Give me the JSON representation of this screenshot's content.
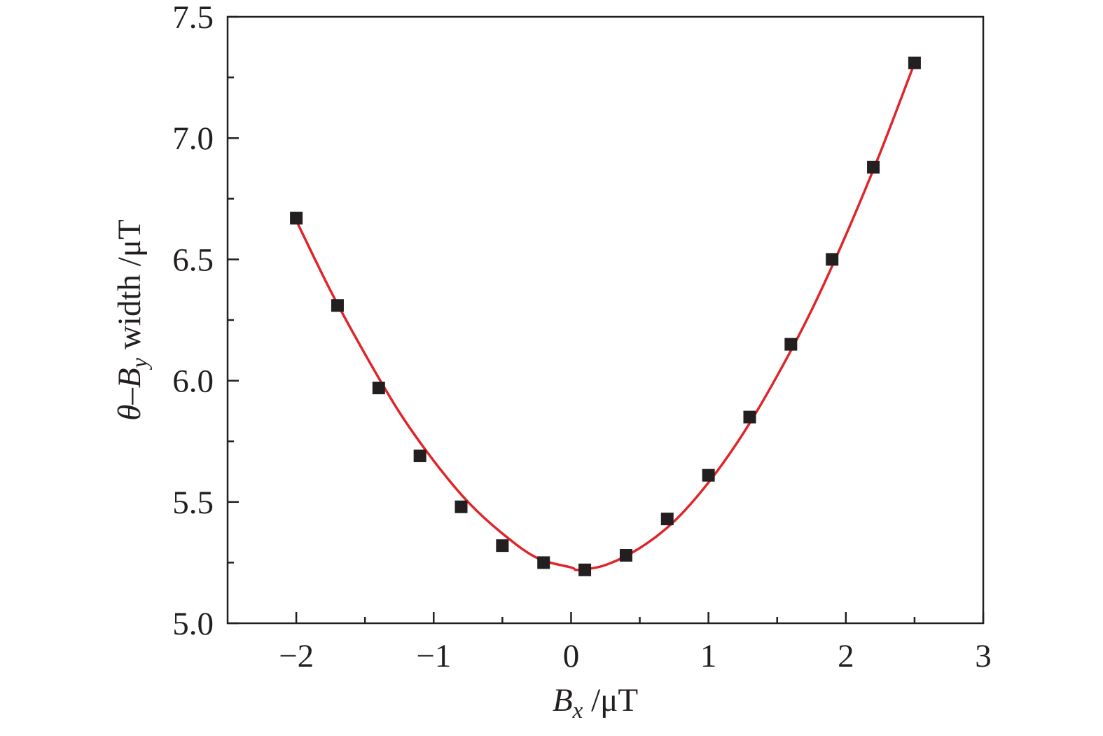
{
  "chart_data": {
    "type": "scatter",
    "xlabel": {
      "var": "B",
      "sub": "x",
      "unit": " /μT"
    },
    "ylabel": {
      "prefix": "θ–B",
      "sub": "y",
      "rest": " width /μT"
    },
    "xlim": [
      -2.5,
      3
    ],
    "ylim": [
      5.0,
      7.5
    ],
    "x_ticks": [
      -2,
      -1,
      0,
      1,
      2,
      3
    ],
    "x_tick_labels": [
      "−2",
      "−1",
      "0",
      "1",
      "2",
      "3"
    ],
    "x_minor_ticks": [
      -1.5,
      -0.5,
      0.5,
      1.5,
      2.5
    ],
    "y_ticks": [
      5.0,
      5.5,
      6.0,
      6.5,
      7.0,
      7.5
    ],
    "y_tick_labels": [
      "5.0",
      "5.5",
      "6.0",
      "6.5",
      "7.0",
      "7.5"
    ],
    "y_minor_ticks": [
      5.25,
      5.75,
      6.25,
      6.75,
      7.25
    ],
    "grid": false,
    "series": [
      {
        "kind": "points",
        "marker": "square",
        "color": "#231f20",
        "x": [
          -2.0,
          -1.7,
          -1.4,
          -1.1,
          -0.8,
          -0.5,
          -0.2,
          0.1,
          0.4,
          0.7,
          1.0,
          1.3,
          1.6,
          1.9,
          2.2,
          2.5
        ],
        "y": [
          6.67,
          6.31,
          5.97,
          5.69,
          5.48,
          5.32,
          5.25,
          5.22,
          5.28,
          5.43,
          5.61,
          5.85,
          6.15,
          6.5,
          6.88,
          7.31
        ]
      },
      {
        "kind": "fit-curve",
        "color": "#e0252a",
        "x": [
          -2.0,
          -1.75,
          -1.5,
          -1.25,
          -1.0,
          -0.75,
          -0.5,
          -0.25,
          0.0,
          0.05,
          0.25,
          0.5,
          0.75,
          1.0,
          1.25,
          1.5,
          1.75,
          2.0,
          2.25,
          2.5
        ],
        "y": [
          6.66,
          6.37,
          6.11,
          5.87,
          5.67,
          5.5,
          5.37,
          5.27,
          5.23,
          5.22,
          5.24,
          5.31,
          5.42,
          5.58,
          5.78,
          6.02,
          6.29,
          6.6,
          6.94,
          7.31
        ]
      }
    ]
  }
}
